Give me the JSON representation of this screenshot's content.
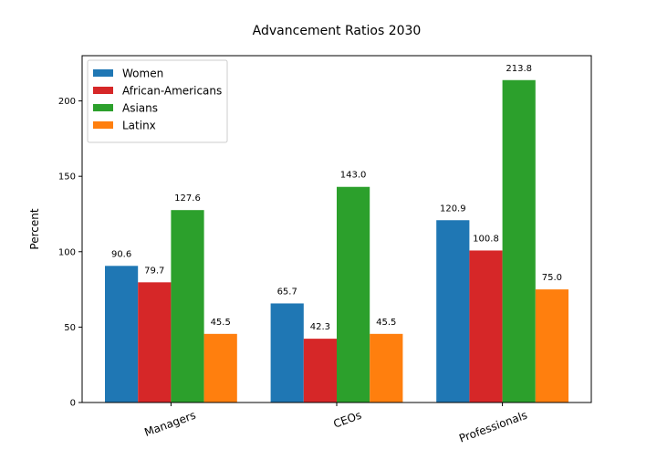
{
  "chart_data": {
    "type": "bar",
    "title": "Advancement Ratios 2030",
    "xlabel": "",
    "ylabel": "Percent",
    "categories": [
      "Managers",
      "CEOs",
      "Professionals"
    ],
    "ylim": [
      0,
      230
    ],
    "yticks": [
      0,
      50,
      100,
      150,
      200
    ],
    "grid": false,
    "legend_position": "top-left",
    "series": [
      {
        "name": "Women",
        "color": "#1f77b4",
        "values": [
          90.6,
          65.7,
          120.9
        ]
      },
      {
        "name": "African-Americans",
        "color": "#d62728",
        "values": [
          79.7,
          42.3,
          100.8
        ]
      },
      {
        "name": "Asians",
        "color": "#2ca02c",
        "values": [
          127.6,
          143.0,
          213.8
        ]
      },
      {
        "name": "Latinx",
        "color": "#ff7f0e",
        "values": [
          45.5,
          45.5,
          75.0
        ]
      }
    ]
  }
}
